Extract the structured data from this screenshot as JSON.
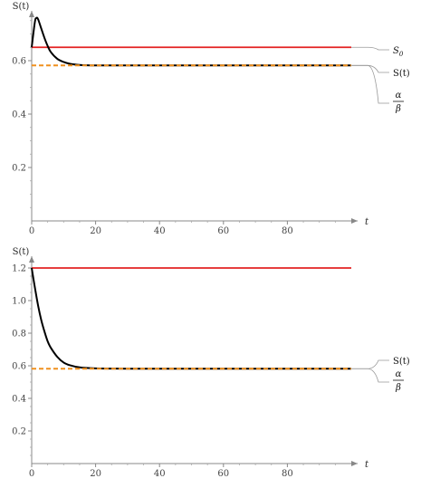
{
  "chart_data": [
    {
      "type": "line",
      "ylabel": "S(t)",
      "xlabel": "t",
      "xlim": [
        0,
        100
      ],
      "ylim": [
        0,
        0.8
      ],
      "xticks": [
        "0",
        "20",
        "40",
        "60",
        "80"
      ],
      "yticks": [
        "0.2",
        "0.4",
        "0.6"
      ],
      "series": [
        {
          "name": "S₀",
          "color": "#e32222",
          "style": "solid",
          "x": [
            0,
            100
          ],
          "y": [
            0.65,
            0.65
          ]
        },
        {
          "name": "S(t)",
          "color": "#000000",
          "style": "solid",
          "x": [
            0,
            1,
            1.5,
            2,
            3,
            4,
            5,
            6,
            8,
            10,
            12,
            15,
            20,
            30,
            50,
            100
          ],
          "y": [
            0.65,
            0.745,
            0.76,
            0.755,
            0.72,
            0.685,
            0.655,
            0.632,
            0.607,
            0.595,
            0.588,
            0.584,
            0.582,
            0.582,
            0.582,
            0.582
          ]
        },
        {
          "name": "α/β",
          "color": "#f0901e",
          "style": "dashed",
          "x": [
            0,
            100
          ],
          "y": [
            0.582,
            0.582
          ]
        }
      ],
      "legend": [
        "S₀",
        "S(t)",
        "α/β"
      ]
    },
    {
      "type": "line",
      "ylabel": "S(t)",
      "xlabel": "t",
      "xlim": [
        0,
        100
      ],
      "ylim": [
        0,
        1.3
      ],
      "xticks": [
        "0",
        "20",
        "40",
        "60",
        "80"
      ],
      "yticks": [
        "0.2",
        "0.4",
        "0.6",
        "0.8",
        "1.0",
        "1.2"
      ],
      "series": [
        {
          "name": "S₀",
          "color": "#e32222",
          "style": "solid",
          "x": [
            0,
            100
          ],
          "y": [
            1.2,
            1.2
          ]
        },
        {
          "name": "S(t)",
          "color": "#000000",
          "style": "solid",
          "x": [
            0,
            1,
            2,
            3,
            4,
            5,
            6,
            8,
            10,
            12,
            15,
            20,
            30,
            50,
            100
          ],
          "y": [
            1.2,
            1.08,
            0.97,
            0.88,
            0.81,
            0.75,
            0.71,
            0.655,
            0.62,
            0.603,
            0.59,
            0.584,
            0.582,
            0.582,
            0.582
          ]
        },
        {
          "name": "α/β",
          "color": "#f0901e",
          "style": "dashed",
          "x": [
            0,
            100
          ],
          "y": [
            0.582,
            0.582
          ]
        }
      ],
      "legend": [
        "S(t)",
        "α/β"
      ]
    }
  ],
  "legend_text": {
    "s0_main": "S",
    "s0_sub": "0",
    "st": "S(t)",
    "alpha": "α",
    "beta": "β"
  }
}
